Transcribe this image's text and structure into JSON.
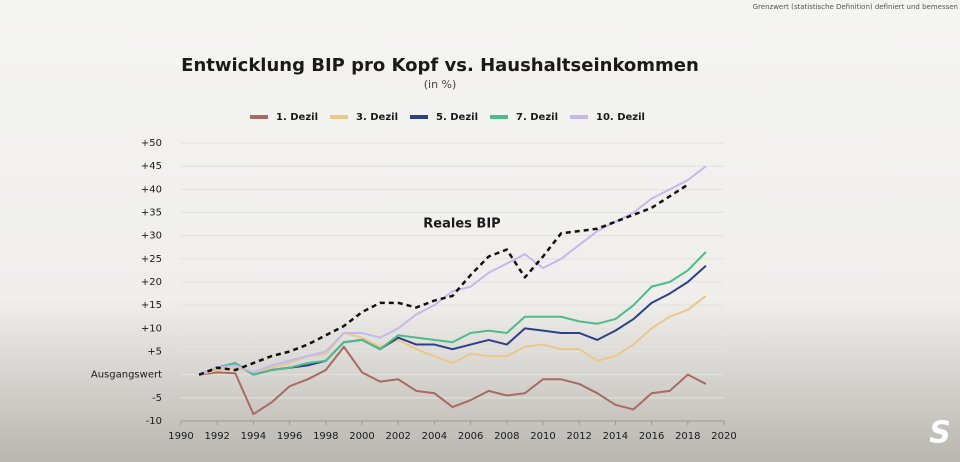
{
  "chart_data": {
    "type": "line",
    "corner_note": "Grenzwert (statistische Definition) definiert und bemessen",
    "title": "Entwicklung BIP pro Kopf vs. Haushaltseinkommen",
    "subtitle": "(in %)",
    "x": [
      1991,
      1992,
      1993,
      1994,
      1995,
      1996,
      1997,
      1998,
      1999,
      2000,
      2001,
      2002,
      2003,
      2004,
      2005,
      2006,
      2007,
      2008,
      2009,
      2010,
      2011,
      2012,
      2013,
      2014,
      2015,
      2016,
      2017,
      2018,
      2019
    ],
    "series": [
      {
        "name": "1. Dezil",
        "color": "#a86a62",
        "values": [
          0,
          0.5,
          0.3,
          -8.5,
          -6,
          -2.5,
          -1,
          1,
          6,
          0.5,
          -1.5,
          -1,
          -3.5,
          -4,
          -7,
          -5.5,
          -3.5,
          -4.5,
          -4,
          -1,
          -1,
          -2,
          -4,
          -6.5,
          -7.5,
          -4,
          -3.5,
          0,
          -2
        ]
      },
      {
        "name": "3. Dezil",
        "color": "#e8c98a",
        "values": [
          0,
          1,
          1.5,
          0.5,
          1.5,
          2.5,
          4,
          4.5,
          9,
          8,
          6,
          7.5,
          5.5,
          4,
          2.5,
          4.5,
          4,
          4,
          6,
          6.5,
          5.5,
          5.5,
          3,
          4,
          6.5,
          10,
          12.5,
          14,
          17
        ]
      },
      {
        "name": "5. Dezil",
        "color": "#2e3f8a",
        "values": [
          0,
          1.5,
          2.5,
          0,
          1,
          1.5,
          2,
          3,
          7,
          7.5,
          5.5,
          8,
          6.5,
          6.5,
          5.5,
          6.5,
          7.5,
          6.5,
          10,
          9.5,
          9,
          9,
          7.5,
          9.5,
          12,
          15.5,
          17.5,
          20,
          23.5
        ]
      },
      {
        "name": "7. Dezil",
        "color": "#4dbb8a",
        "values": [
          0,
          1.5,
          2.5,
          0,
          1,
          1.5,
          2.5,
          3,
          7,
          7.5,
          5.5,
          8.5,
          8,
          7.5,
          7,
          9,
          9.5,
          9,
          12.5,
          12.5,
          12.5,
          11.5,
          11,
          12,
          15,
          19,
          20,
          22.5,
          26.5
        ]
      },
      {
        "name": "10. Dezil",
        "color": "#c4b8ee",
        "values": [
          0,
          1.5,
          2,
          0.5,
          2,
          3,
          4,
          5,
          9,
          9,
          8,
          10,
          13,
          15,
          18,
          19,
          22,
          24,
          26,
          23,
          25,
          28,
          31,
          33,
          35,
          38,
          40,
          42,
          45
        ]
      }
    ],
    "reference": {
      "name": "Reales BIP",
      "color": "#111111",
      "dashed": true,
      "values": [
        0,
        1.5,
        1,
        2.5,
        4,
        5,
        6.5,
        8.5,
        10.5,
        13.5,
        15.5,
        15.5,
        14.5,
        16,
        17,
        21.5,
        25.5,
        27,
        21,
        25.5,
        30.5,
        31,
        31.5,
        33,
        34.5,
        36,
        38.5,
        41,
        null
      ]
    },
    "xlim": [
      1990,
      2020
    ],
    "xticks": [
      1990,
      1992,
      1994,
      1996,
      1998,
      2000,
      2002,
      2004,
      2006,
      2008,
      2010,
      2012,
      2014,
      2016,
      2018,
      2020
    ],
    "ylim": [
      -10,
      50
    ],
    "yticks": [
      {
        "value": -10,
        "label": "-10"
      },
      {
        "value": -5,
        "label": "-5"
      },
      {
        "value": 0,
        "label": "Ausgangswert"
      },
      {
        "value": 5,
        "label": "+5"
      },
      {
        "value": 10,
        "label": "+10"
      },
      {
        "value": 15,
        "label": "+15"
      },
      {
        "value": 20,
        "label": "+20"
      },
      {
        "value": 25,
        "label": "+25"
      },
      {
        "value": 30,
        "label": "+30"
      },
      {
        "value": 35,
        "label": "+35"
      },
      {
        "value": 40,
        "label": "+40"
      },
      {
        "value": 45,
        "label": "+45"
      },
      {
        "value": 50,
        "label": "+50"
      }
    ],
    "grid": true
  }
}
